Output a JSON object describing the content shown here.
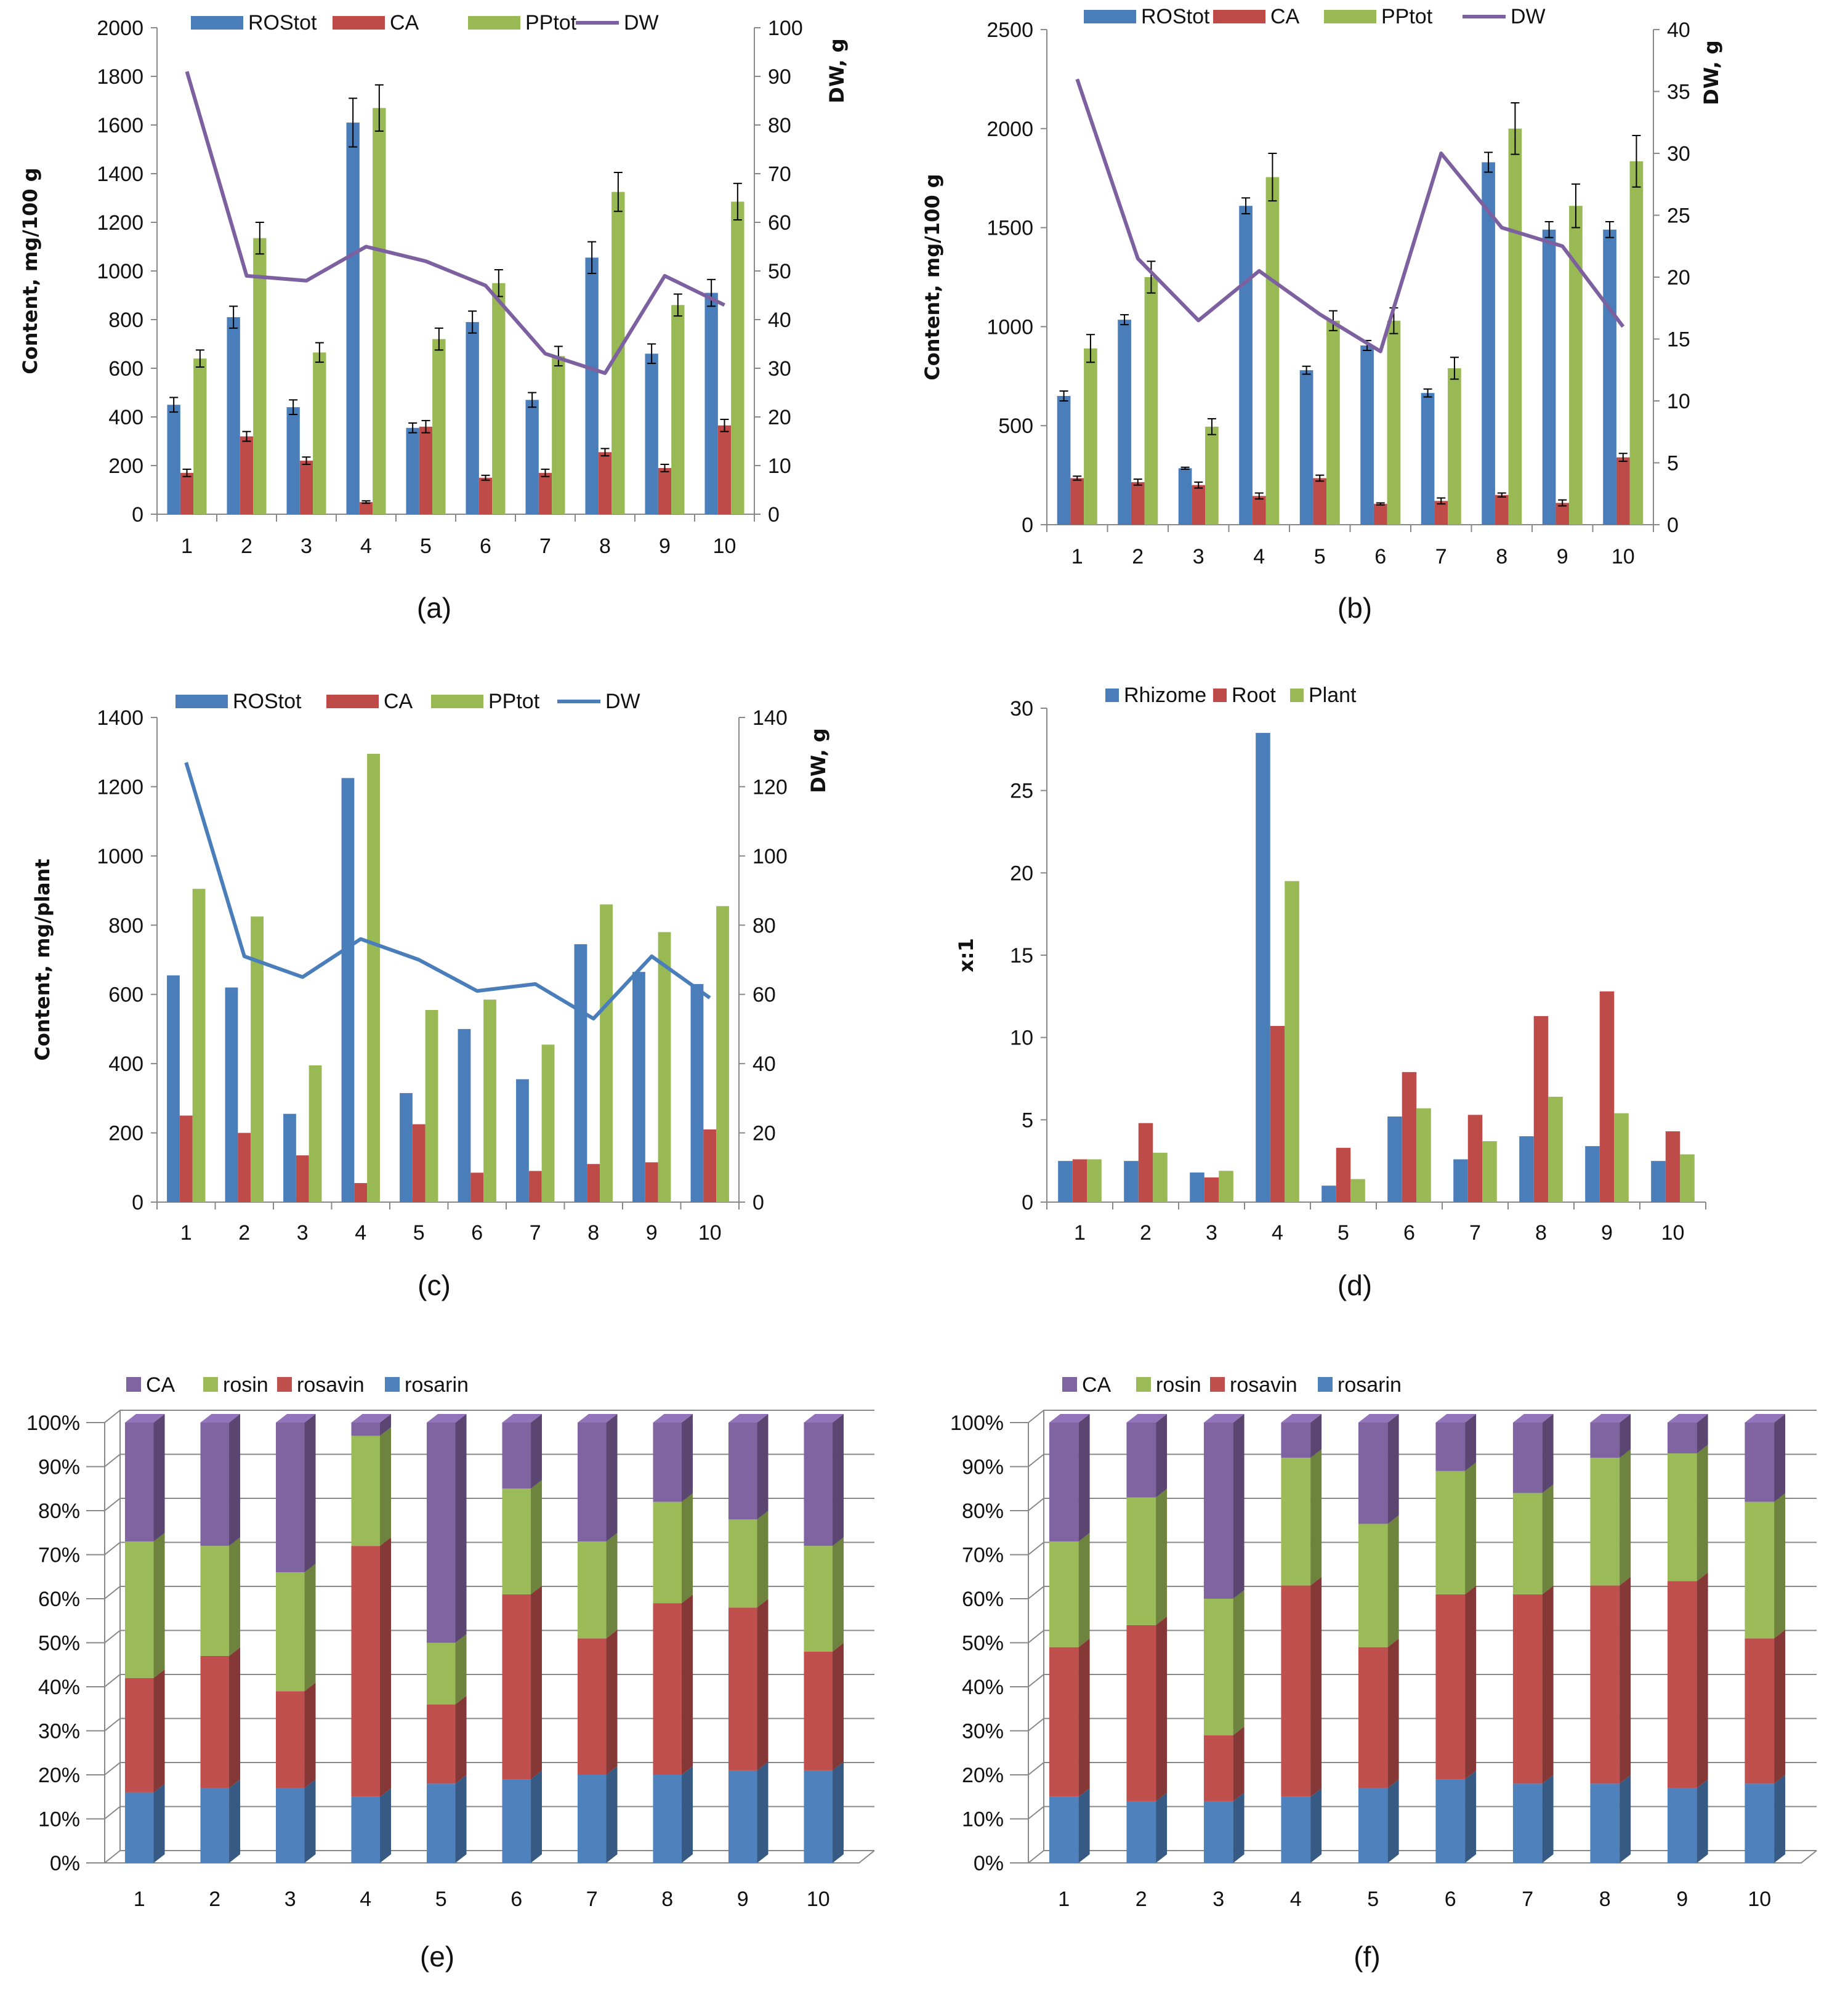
{
  "colors": {
    "ROStot": "#4A7EBB",
    "CA": "#BE4B48",
    "PPtot": "#98B954",
    "DW_purple": "#7D60A0",
    "DW_blue": "#4A7EBB",
    "Rhizome": "#4A7EBB",
    "Root": "#BE4B48",
    "Plant": "#98B954",
    "stk_CA": "#8064A2",
    "stk_rosin": "#9BBB59",
    "stk_rosavin": "#C0504D",
    "stk_rosarin": "#4F81BD"
  },
  "chart_data": [
    {
      "id": "a",
      "type": "bar+line",
      "caption": "(a)",
      "categories": [
        "1",
        "2",
        "3",
        "4",
        "5",
        "6",
        "7",
        "8",
        "9",
        "10"
      ],
      "ylabel": "Content, mg/100 g",
      "y2label": "DW, g",
      "ylim": [
        0,
        2000
      ],
      "yticks": [
        0,
        200,
        400,
        600,
        800,
        1000,
        1200,
        1400,
        1600,
        1800,
        2000
      ],
      "y2lim": [
        0,
        100
      ],
      "y2ticks": [
        0,
        10,
        20,
        30,
        40,
        50,
        60,
        70,
        80,
        90,
        100
      ],
      "series": [
        {
          "name": "ROStot",
          "color_key": "ROStot",
          "values": [
            450,
            810,
            440,
            1610,
            355,
            790,
            470,
            1055,
            660,
            910
          ],
          "err": [
            30,
            45,
            30,
            100,
            20,
            45,
            30,
            65,
            40,
            55
          ]
        },
        {
          "name": "CA",
          "color_key": "CA",
          "values": [
            170,
            320,
            220,
            50,
            360,
            150,
            170,
            255,
            190,
            365
          ],
          "err": [
            15,
            20,
            15,
            5,
            25,
            10,
            15,
            15,
            15,
            25
          ]
        },
        {
          "name": "PPtot",
          "color_key": "PPtot",
          "values": [
            640,
            1135,
            665,
            1670,
            720,
            950,
            650,
            1325,
            860,
            1285
          ],
          "err": [
            35,
            65,
            40,
            95,
            45,
            55,
            40,
            80,
            45,
            75
          ]
        }
      ],
      "line": {
        "name": "DW",
        "color_key": "DW_purple",
        "values": [
          91,
          49,
          48,
          55,
          52,
          47,
          33,
          29,
          49,
          43
        ]
      }
    },
    {
      "id": "b",
      "type": "bar+line",
      "caption": "(b)",
      "categories": [
        "1",
        "2",
        "3",
        "4",
        "5",
        "6",
        "7",
        "8",
        "9",
        "10"
      ],
      "ylabel": "Content, mg/100 g",
      "y2label": "DW, g",
      "ylim": [
        0,
        2500
      ],
      "yticks": [
        0,
        500,
        1000,
        1500,
        2000,
        2500
      ],
      "y2lim": [
        0,
        40
      ],
      "y2ticks": [
        0,
        5,
        10,
        15,
        20,
        25,
        30,
        35,
        40
      ],
      "series": [
        {
          "name": "ROStot",
          "color_key": "ROStot",
          "values": [
            650,
            1035,
            285,
            1610,
            780,
            905,
            665,
            1830,
            1490,
            1490
          ],
          "err": [
            25,
            25,
            5,
            40,
            20,
            25,
            20,
            50,
            40,
            40
          ]
        },
        {
          "name": "CA",
          "color_key": "CA",
          "values": [
            235,
            215,
            200,
            145,
            235,
            105,
            120,
            150,
            110,
            340
          ],
          "err": [
            10,
            15,
            15,
            15,
            15,
            5,
            15,
            10,
            15,
            20
          ]
        },
        {
          "name": "PPtot",
          "color_key": "PPtot",
          "values": [
            890,
            1250,
            495,
            1755,
            1030,
            1030,
            790,
            2000,
            1610,
            1835
          ],
          "err": [
            70,
            80,
            40,
            120,
            50,
            65,
            55,
            130,
            110,
            130
          ]
        }
      ],
      "line": {
        "name": "DW",
        "color_key": "DW_purple",
        "values": [
          36,
          21.5,
          16.5,
          20.5,
          17,
          14,
          30,
          24,
          22.5,
          16
        ]
      }
    },
    {
      "id": "c",
      "type": "bar+line",
      "caption": "(c)",
      "categories": [
        "1",
        "2",
        "3",
        "4",
        "5",
        "6",
        "7",
        "8",
        "9",
        "10"
      ],
      "ylabel": "Content, mg/plant",
      "y2label": "DW, g",
      "ylim": [
        0,
        1400
      ],
      "yticks": [
        0,
        200,
        400,
        600,
        800,
        1000,
        1200,
        1400
      ],
      "y2lim": [
        0,
        140
      ],
      "y2ticks": [
        0,
        20,
        40,
        60,
        80,
        100,
        120,
        140
      ],
      "series": [
        {
          "name": "ROStot",
          "color_key": "ROStot",
          "values": [
            655,
            620,
            255,
            1225,
            315,
            500,
            355,
            745,
            665,
            630
          ]
        },
        {
          "name": "CA",
          "color_key": "CA",
          "values": [
            250,
            200,
            135,
            55,
            225,
            85,
            90,
            110,
            115,
            210
          ]
        },
        {
          "name": "PPtot",
          "color_key": "PPtot",
          "values": [
            905,
            825,
            395,
            1295,
            555,
            585,
            455,
            860,
            780,
            855
          ]
        }
      ],
      "line": {
        "name": "DW",
        "color_key": "DW_blue",
        "values": [
          127,
          71,
          65,
          76,
          70,
          61,
          63,
          53,
          71,
          59
        ]
      }
    },
    {
      "id": "d",
      "type": "bar",
      "caption": "(d)",
      "categories": [
        "1",
        "2",
        "3",
        "4",
        "5",
        "6",
        "7",
        "8",
        "9",
        "10"
      ],
      "ylabel": "x:1",
      "ylim": [
        0,
        30
      ],
      "yticks": [
        0,
        5,
        10,
        15,
        20,
        25,
        30
      ],
      "series": [
        {
          "name": "Rhizome",
          "color_key": "Rhizome",
          "values": [
            2.5,
            2.5,
            1.8,
            28.5,
            1.0,
            5.2,
            2.6,
            4.0,
            3.4,
            2.5
          ]
        },
        {
          "name": "Root",
          "color_key": "Root",
          "values": [
            2.6,
            4.8,
            1.5,
            10.7,
            3.3,
            7.9,
            5.3,
            11.3,
            12.8,
            4.3
          ]
        },
        {
          "name": "Plant",
          "color_key": "Plant",
          "values": [
            2.6,
            3.0,
            1.9,
            19.5,
            1.4,
            5.7,
            3.7,
            6.4,
            5.4,
            2.9
          ]
        }
      ]
    },
    {
      "id": "e",
      "type": "stacked-bar-100",
      "caption": "(e)",
      "categories": [
        "1",
        "2",
        "3",
        "4",
        "5",
        "6",
        "7",
        "8",
        "9",
        "10"
      ],
      "yticks": [
        "0%",
        "10%",
        "20%",
        "30%",
        "40%",
        "50%",
        "60%",
        "70%",
        "80%",
        "90%",
        "100%"
      ],
      "legend": [
        {
          "name": "CA",
          "color_key": "stk_CA"
        },
        {
          "name": "rosin",
          "color_key": "stk_rosin"
        },
        {
          "name": "rosavin",
          "color_key": "stk_rosavin"
        },
        {
          "name": "rosarin",
          "color_key": "stk_rosarin"
        }
      ],
      "series": [
        {
          "name": "rosarin",
          "color_key": "stk_rosarin",
          "values": [
            16,
            17,
            17,
            15,
            18,
            19,
            20,
            20,
            21,
            21
          ]
        },
        {
          "name": "rosavin",
          "color_key": "stk_rosavin",
          "values": [
            26,
            30,
            22,
            57,
            18,
            42,
            31,
            39,
            37,
            27
          ]
        },
        {
          "name": "rosin",
          "color_key": "stk_rosin",
          "values": [
            31,
            25,
            27,
            25,
            14,
            24,
            22,
            23,
            20,
            24
          ]
        },
        {
          "name": "CA",
          "color_key": "stk_CA",
          "values": [
            27,
            28,
            34,
            3,
            50,
            15,
            27,
            18,
            22,
            28
          ]
        }
      ]
    },
    {
      "id": "f",
      "type": "stacked-bar-100",
      "caption": "(f)",
      "categories": [
        "1",
        "2",
        "3",
        "4",
        "5",
        "6",
        "7",
        "8",
        "9",
        "10"
      ],
      "yticks": [
        "0%",
        "10%",
        "20%",
        "30%",
        "40%",
        "50%",
        "60%",
        "70%",
        "80%",
        "90%",
        "100%"
      ],
      "legend": [
        {
          "name": "CA",
          "color_key": "stk_CA"
        },
        {
          "name": "rosin",
          "color_key": "stk_rosin"
        },
        {
          "name": "rosavin",
          "color_key": "stk_rosavin"
        },
        {
          "name": "rosarin",
          "color_key": "stk_rosarin"
        }
      ],
      "series": [
        {
          "name": "rosarin",
          "color_key": "stk_rosarin",
          "values": [
            15,
            14,
            14,
            15,
            17,
            19,
            18,
            18,
            17,
            18
          ]
        },
        {
          "name": "rosavin",
          "color_key": "stk_rosavin",
          "values": [
            34,
            40,
            15,
            48,
            32,
            42,
            43,
            45,
            47,
            33
          ]
        },
        {
          "name": "rosin",
          "color_key": "stk_rosin",
          "values": [
            24,
            29,
            31,
            29,
            28,
            28,
            23,
            29,
            29,
            31
          ]
        },
        {
          "name": "CA",
          "color_key": "stk_CA",
          "values": [
            27,
            17,
            40,
            8,
            23,
            11,
            16,
            8,
            7,
            18
          ]
        }
      ]
    }
  ]
}
